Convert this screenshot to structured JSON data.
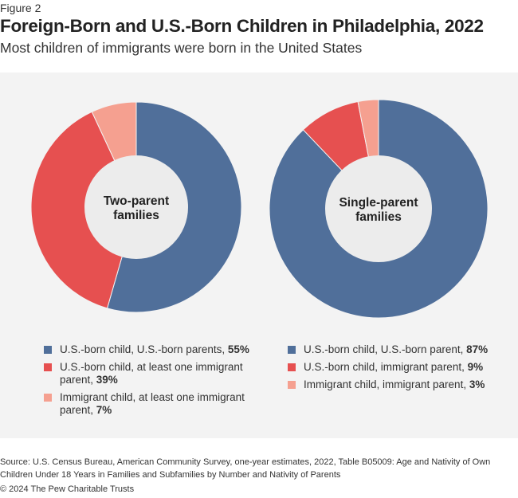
{
  "figure_label": "Figure 2",
  "title": "Foreign-Born and U.S.-Born Children in Philadelphia, 2022",
  "subtitle": "Most children of immigrants were born in the United States",
  "colors": {
    "us_born_us_parent": "#506f9a",
    "us_born_immigrant_parent": "#e65050",
    "immigrant_child": "#f5a090"
  },
  "chart_data": [
    {
      "type": "pie",
      "donut": true,
      "center_label": [
        "Two-parent",
        "families"
      ],
      "slices": [
        {
          "label": "U.S.-born child, U.S.-born parents,",
          "value": 55,
          "value_label": "55%",
          "color": "#506f9a"
        },
        {
          "label": "U.S.-born child, at least one immigrant parent,",
          "value": 39,
          "value_label": "39%",
          "color": "#e65050"
        },
        {
          "label": "Immigrant child, at least one immigrant parent,",
          "value": 7,
          "value_label": "7%",
          "color": "#f5a090"
        }
      ]
    },
    {
      "type": "pie",
      "donut": true,
      "center_label": [
        "Single-parent",
        "families"
      ],
      "slices": [
        {
          "label": "U.S.-born child, U.S.-born parent,",
          "value": 87,
          "value_label": "87%",
          "color": "#506f9a"
        },
        {
          "label": "U.S.-born child, immigrant parent,",
          "value": 9,
          "value_label": "9%",
          "color": "#e65050"
        },
        {
          "label": "Immigrant child, immigrant parent,",
          "value": 3,
          "value_label": "3%",
          "color": "#f5a090"
        }
      ]
    }
  ],
  "source": "Source: U.S. Census Bureau, American Community Survey, one-year estimates, 2022, Table B05009: Age and Nativity of Own Children Under 18 Years in Families and Subfamilies by Number and Nativity of Parents",
  "copyright": "© 2024 The Pew Charitable Trusts"
}
